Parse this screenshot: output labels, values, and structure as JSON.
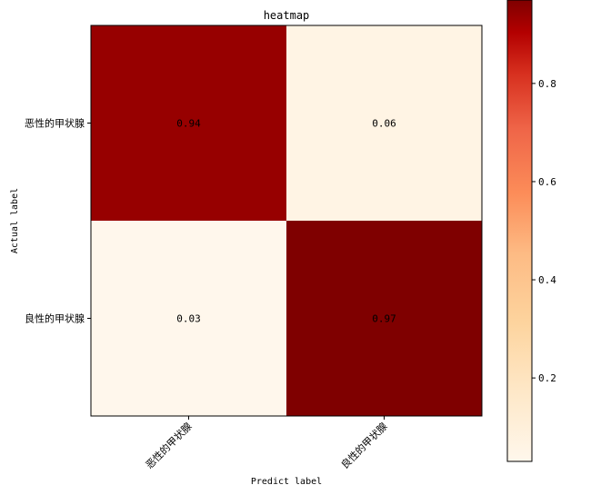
{
  "chart_data": {
    "type": "heatmap",
    "title": "heatmap",
    "xlabel": "Predict label",
    "ylabel": "Actual label",
    "x_categories": [
      "恶性的甲状腺",
      "良性的甲状腺"
    ],
    "y_categories": [
      "恶性的甲状腺",
      "良性的甲状腺"
    ],
    "values": [
      [
        0.94,
        0.06
      ],
      [
        0.03,
        0.97
      ]
    ],
    "value_labels": [
      [
        "0.94",
        "0.06"
      ],
      [
        "0.03",
        "0.97"
      ]
    ],
    "colormap": "OrRd",
    "colorbar": {
      "range": [
        0.03,
        0.97
      ],
      "ticks": [
        0.2,
        0.4,
        0.6,
        0.8
      ],
      "tick_labels": [
        "0.2",
        "0.4",
        "0.6",
        "0.8"
      ]
    },
    "colors": {
      "low": "#fff7ec",
      "high": "#7f0000"
    }
  }
}
